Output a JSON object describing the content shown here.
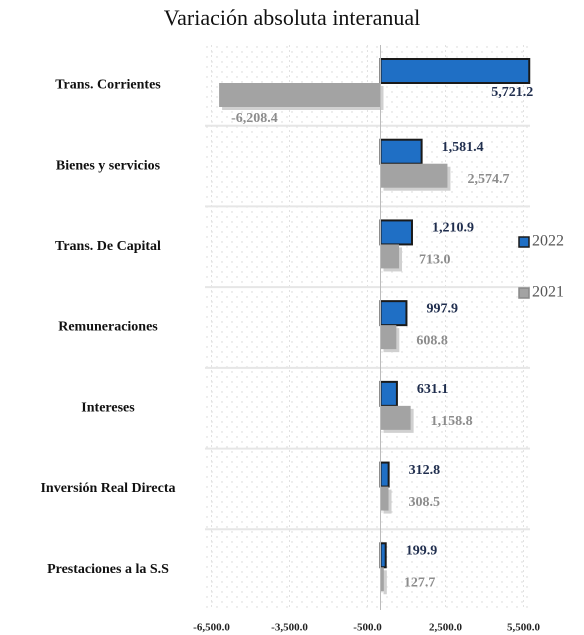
{
  "chart_data": {
    "type": "bar",
    "orientation": "horizontal",
    "title": "Variación absoluta interanual",
    "categories": [
      "Trans. Corrientes",
      "Bienes y servicios",
      "Trans. De Capital",
      "Remuneraciones",
      "Intereses",
      "Inversión Real Directa",
      "Prestaciones a la S.S"
    ],
    "series": [
      {
        "name": "2022",
        "color": "#1f6fc5",
        "label_color": "#1f2d4d",
        "values": [
          5721.2,
          1581.4,
          1210.9,
          997.9,
          631.1,
          312.8,
          199.9
        ],
        "value_labels": [
          "5,721.2",
          "1,581.4",
          "1,210.9",
          "997.9",
          "631.1",
          "312.8",
          "199.9"
        ]
      },
      {
        "name": "2021",
        "color": "#a3a3a3",
        "label_color": "#8c8c8c",
        "values": [
          -6208.4,
          2574.7,
          713.0,
          608.8,
          1158.8,
          308.5,
          127.7
        ],
        "value_labels": [
          "-6,208.4",
          "2,574.7",
          "713.0",
          "608.8",
          "1,158.8",
          "308.5",
          "127.7"
        ]
      }
    ],
    "xlim": [
      -6750,
      5750
    ],
    "xticks": [
      {
        "value": -6500,
        "label": "-6,500.0"
      },
      {
        "value": -3500,
        "label": "-3,500.0"
      },
      {
        "value": -500,
        "label": "-500.0"
      },
      {
        "value": 2500,
        "label": "2,500.0"
      },
      {
        "value": 5500,
        "label": "5,500.0"
      }
    ],
    "grid": true,
    "legend": "right"
  }
}
